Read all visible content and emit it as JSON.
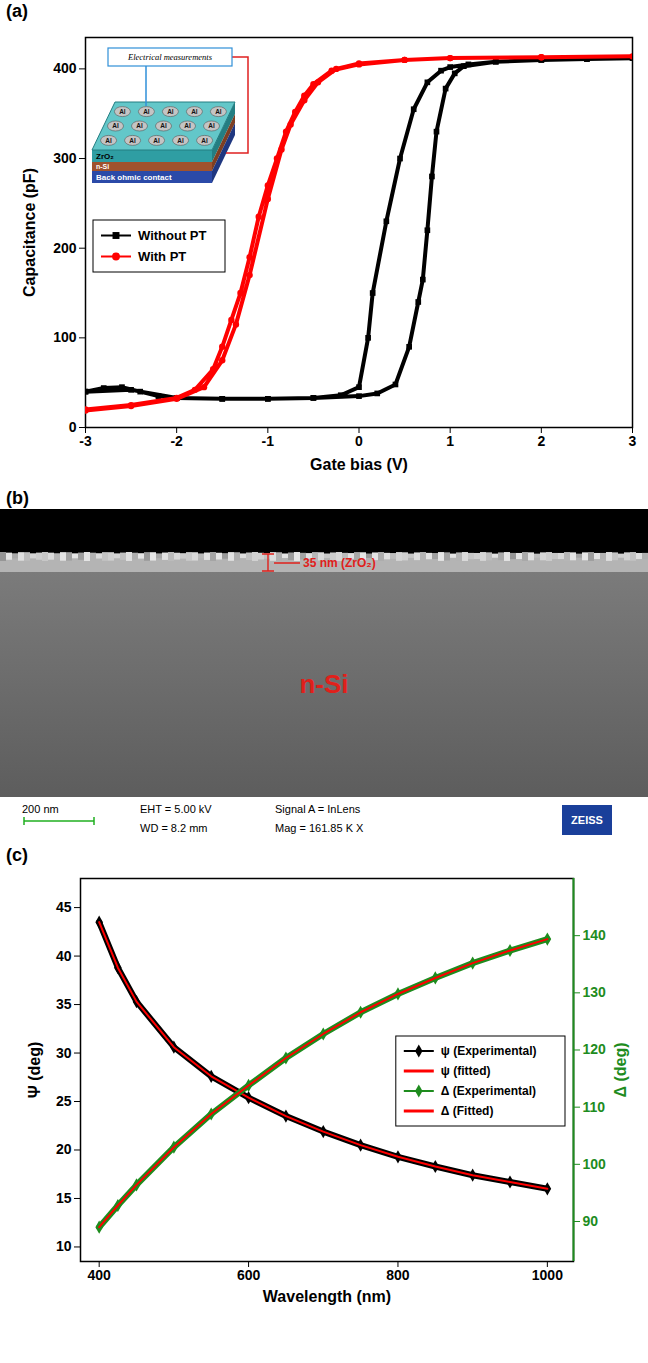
{
  "chart_data": [
    {
      "type": "line",
      "title": "(a)",
      "x_label": "Gate bias (V)",
      "y_label": "Capacitance (pF)",
      "xlim": [
        -3,
        3
      ],
      "xticks": [
        -3,
        -2,
        -1,
        0,
        1,
        2,
        3
      ],
      "ylim": [
        0,
        435
      ],
      "yticks": [
        0,
        100,
        200,
        300,
        400
      ],
      "legend": "left",
      "series": [
        {
          "name": "Without PT",
          "color": "#000000",
          "marker": "square",
          "x": [
            -3,
            -2.8,
            -2.6,
            -2.4,
            -2.2,
            -2,
            -1.5,
            -1,
            -0.5,
            -0.2,
            0,
            0.1,
            0.15,
            0.3,
            0.45,
            0.6,
            0.75,
            0.9,
            1.0,
            1.2,
            1.5,
            2,
            2.5,
            3,
            2.5,
            2,
            1.5,
            1.15,
            1.05,
            0.95,
            0.85,
            0.8,
            0.75,
            0.7,
            0.65,
            0.55,
            0.4,
            0.2,
            0,
            -0.5,
            -1,
            -1.5,
            -2,
            -2.5,
            -3
          ],
          "values": [
            40,
            44,
            45,
            40,
            35,
            33,
            32,
            32,
            33,
            36,
            45,
            100,
            150,
            230,
            300,
            355,
            385,
            398,
            402,
            405,
            408,
            410,
            411,
            412,
            411,
            410,
            408,
            403,
            395,
            378,
            330,
            280,
            220,
            165,
            140,
            90,
            48,
            38,
            35,
            33,
            32,
            32,
            33,
            42,
            40
          ]
        },
        {
          "name": "With PT",
          "color": "#ff0000",
          "marker": "circle",
          "x": [
            -3,
            -2.5,
            -2,
            -1.8,
            -1.6,
            -1.5,
            -1.4,
            -1.3,
            -1.2,
            -1.1,
            -1,
            -0.9,
            -0.8,
            -0.7,
            -0.6,
            -0.5,
            -0.3,
            0,
            0.5,
            1,
            2,
            3,
            2,
            1,
            0.5,
            0,
            -0.25,
            -0.45,
            -0.6,
            -0.75,
            -0.85,
            -1,
            -1.2,
            -1.35,
            -1.5,
            -1.7,
            -2,
            -2.5,
            -3
          ],
          "values": [
            20,
            25,
            33,
            42,
            65,
            90,
            120,
            150,
            190,
            235,
            270,
            300,
            330,
            352,
            370,
            383,
            398,
            405,
            410,
            412,
            413,
            414,
            413,
            412,
            410,
            406,
            400,
            385,
            365,
            338,
            310,
            255,
            170,
            115,
            75,
            45,
            32,
            24,
            19
          ]
        }
      ],
      "annotations": [
        "Electrical measurements",
        "Al",
        "ZrO₂",
        "n-Si",
        "Back ohmic contact"
      ]
    },
    {
      "type": "image",
      "title": "(b)",
      "annotations": [
        "35 nm (ZrO₂)",
        "n-Si"
      ],
      "footer": [
        "200 nm",
        "EHT = 5.00 kV",
        "WD = 8.2 mm",
        "Signal A = InLens",
        "Mag = 161.85 K X",
        "ZEISS"
      ]
    },
    {
      "type": "line",
      "title": "(c)",
      "x_label": "Wavelength (nm)",
      "y_label": "Ψ (deg)",
      "y2_label": "Δ (deg)",
      "xlim": [
        375,
        1035
      ],
      "xticks": [
        400,
        600,
        800,
        1000
      ],
      "ylim": [
        8.5,
        48
      ],
      "yticks": [
        10,
        15,
        20,
        25,
        30,
        35,
        40,
        45
      ],
      "y2lim": [
        83,
        150
      ],
      "y2ticks": [
        90,
        100,
        110,
        120,
        130,
        140
      ],
      "legend": "right",
      "x": [
        400,
        425,
        450,
        500,
        550,
        600,
        650,
        700,
        750,
        800,
        850,
        900,
        950,
        1000
      ],
      "series": [
        {
          "name": "ψ (Experimental)",
          "type": "scatter",
          "marker": "diamond",
          "color": "#000000",
          "values": [
            43.5,
            38.8,
            35.3,
            30.6,
            27.6,
            25.4,
            23.5,
            21.9,
            20.5,
            19.3,
            18.3,
            17.4,
            16.7,
            16.0
          ]
        },
        {
          "name": "ψ (fitted)",
          "type": "line",
          "line_style": "solid",
          "color": "#ff0000",
          "values": [
            43.5,
            38.8,
            35.3,
            30.6,
            27.6,
            25.4,
            23.5,
            21.9,
            20.5,
            19.3,
            18.3,
            17.4,
            16.7,
            16.0
          ]
        },
        {
          "name": "Δ (Experimental)",
          "type": "scatter",
          "marker": "diamond",
          "color": "#1e8c1e",
          "axis": "y2",
          "values": [
            89,
            92.8,
            96.4,
            103,
            108.8,
            113.8,
            118.6,
            122.8,
            126.6,
            129.8,
            132.6,
            135.2,
            137.4,
            139.4
          ]
        },
        {
          "name": "Δ (Fitted)",
          "type": "line",
          "line_style": "solid",
          "color": "#ff0000",
          "axis": "y2",
          "values": [
            89,
            92.8,
            96.4,
            103,
            108.8,
            113.8,
            118.6,
            122.8,
            126.6,
            129.8,
            132.6,
            135.2,
            137.4,
            139.4
          ]
        }
      ]
    }
  ]
}
